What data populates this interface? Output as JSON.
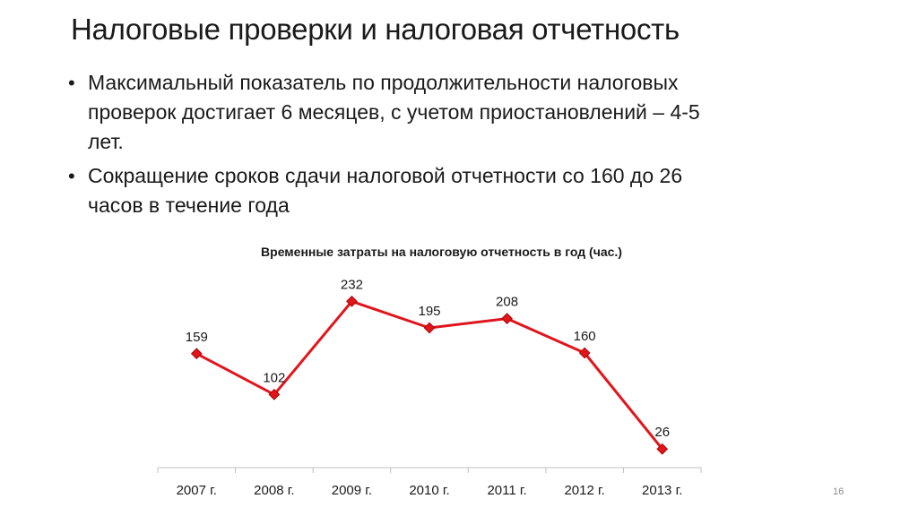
{
  "slide": {
    "title": "Налоговые проверки и налоговая отчетность",
    "page_number": "16"
  },
  "bullets": [
    {
      "marker": "•",
      "lines": [
        "Максимальный показатель по продолжительности налоговых",
        "проверок достигает 6 месяцев, с учетом приостановлений –  4-5",
        "лет."
      ]
    },
    {
      "marker": "•",
      "lines": [
        "Сокращение сроков сдачи налоговой отчетности со 160 до 26",
        "часов в течение года"
      ]
    }
  ],
  "chart_data": {
    "type": "line",
    "title": "Временные затраты на налоговую отчетность в год (час.)",
    "xlabel": "",
    "ylabel": "",
    "categories": [
      "2007 г.",
      "2008 г.",
      "2009 г.",
      "2010 г.",
      "2011 г.",
      "2012 г.",
      "2013 г."
    ],
    "series": [
      {
        "values": [
          159,
          102,
          232,
          195,
          208,
          160,
          26
        ],
        "color": "#e0161d"
      }
    ],
    "data_labels": true,
    "grid": false,
    "legend": "none",
    "y_axis_visible": false
  }
}
